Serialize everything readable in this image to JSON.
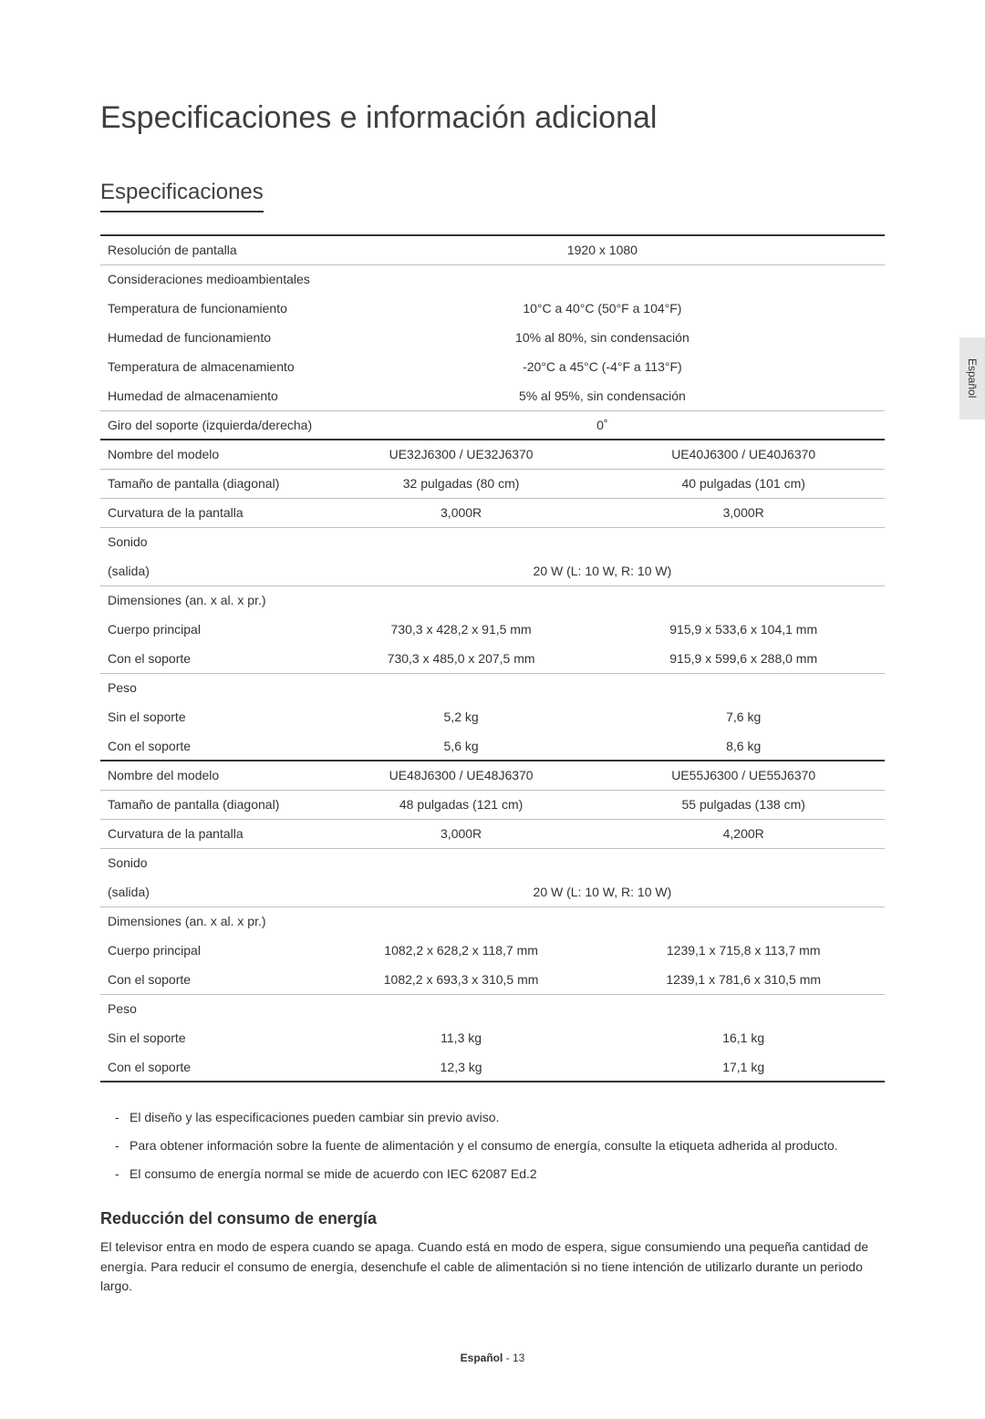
{
  "page_title": "Especificaciones e información adicional",
  "section_title": "Especificaciones",
  "side_tab_label": "Español",
  "table": {
    "rows": [
      {
        "type": "single",
        "label": "Resolución de pantalla",
        "value": "1920 x 1080",
        "topthick": true
      },
      {
        "type": "header",
        "label": "Consideraciones medioambientales"
      },
      {
        "type": "single",
        "label": "Temperatura de funcionamiento",
        "value": "10°C a 40°C (50°F a 104°F)",
        "noborder": true
      },
      {
        "type": "single",
        "label": "Humedad de funcionamiento",
        "value": "10% al 80%, sin condensación",
        "noborder": true
      },
      {
        "type": "single",
        "label": "Temperatura de almacenamiento",
        "value": "-20°C a 45°C (-4°F a 113°F)",
        "noborder": true
      },
      {
        "type": "single",
        "label": "Humedad de almacenamiento",
        "value": "5% al 95%, sin condensación"
      },
      {
        "type": "single_thick",
        "label": "Giro del soporte (izquierda/derecha)",
        "value": "0˚"
      },
      {
        "type": "double",
        "label": "Nombre del modelo",
        "v1": "UE32J6300 / UE32J6370",
        "v2": "UE40J6300 / UE40J6370"
      },
      {
        "type": "double",
        "label": "Tamaño de pantalla (diagonal)",
        "v1": "32 pulgadas (80 cm)",
        "v2": "40 pulgadas (101 cm)"
      },
      {
        "type": "double",
        "label": "Curvatura de la pantalla",
        "v1": "3,000R",
        "v2": "3,000R"
      },
      {
        "type": "header",
        "label": "Sonido"
      },
      {
        "type": "single",
        "label": "(salida)",
        "value": "20 W (L: 10 W, R: 10 W)"
      },
      {
        "type": "header2",
        "label": "Dimensiones (an. x al. x pr.)"
      },
      {
        "type": "double",
        "label": "Cuerpo principal",
        "v1": "730,3 x 428,2 x 91,5 mm",
        "v2": "915,9 x 533,6 x 104,1 mm",
        "noborder": true
      },
      {
        "type": "double",
        "label": "Con el soporte",
        "v1": "730,3 x 485,0 x 207,5 mm",
        "v2": "915,9 x 599,6 x 288,0 mm"
      },
      {
        "type": "header2",
        "label": "Peso"
      },
      {
        "type": "double",
        "label": "Sin el soporte",
        "v1": "5,2 kg",
        "v2": "7,6 kg",
        "noborder": true
      },
      {
        "type": "double_thick",
        "label": "Con el soporte",
        "v1": "5,6 kg",
        "v2": "8,6 kg"
      },
      {
        "type": "double",
        "label": "Nombre del modelo",
        "v1": "UE48J6300 / UE48J6370",
        "v2": "UE55J6300 / UE55J6370"
      },
      {
        "type": "double",
        "label": "Tamaño de pantalla (diagonal)",
        "v1": "48 pulgadas (121 cm)",
        "v2": "55 pulgadas (138 cm)"
      },
      {
        "type": "double",
        "label": "Curvatura de la pantalla",
        "v1": "3,000R",
        "v2": "4,200R"
      },
      {
        "type": "header",
        "label": "Sonido"
      },
      {
        "type": "single",
        "label": "(salida)",
        "value": "20 W (L: 10 W, R: 10 W)"
      },
      {
        "type": "header2",
        "label": "Dimensiones (an. x al. x pr.)"
      },
      {
        "type": "double",
        "label": "Cuerpo principal",
        "v1": "1082,2 x 628,2 x 118,7 mm",
        "v2": "1239,1 x 715,8 x 113,7 mm",
        "noborder": true
      },
      {
        "type": "double",
        "label": "Con el soporte",
        "v1": "1082,2 x 693,3 x 310,5 mm",
        "v2": "1239,1 x 781,6 x 310,5 mm"
      },
      {
        "type": "header2",
        "label": "Peso"
      },
      {
        "type": "double",
        "label": "Sin el soporte",
        "v1": "11,3 kg",
        "v2": "16,1 kg",
        "noborder": true
      },
      {
        "type": "double_thick",
        "label": "Con el soporte",
        "v1": "12,3 kg",
        "v2": "17,1 kg"
      }
    ]
  },
  "notes": [
    "El diseño y las especificaciones pueden cambiar sin previo aviso.",
    "Para obtener información sobre la fuente de alimentación y el consumo de energía, consulte la etiqueta adherida al producto.",
    "El consumo de energía normal se mide de acuerdo con IEC 62087 Ed.2"
  ],
  "subsection_title": "Reducción del consumo de energía",
  "subsection_body": "El televisor entra en modo de espera cuando se apaga. Cuando está en modo de espera, sigue consumiendo una pequeña cantidad de energía. Para reducir el consumo de energía, desenchufe el cable de alimentación si no tiene intención de utilizarlo durante un periodo largo.",
  "footer_lang": "Español",
  "footer_page": "- 13"
}
